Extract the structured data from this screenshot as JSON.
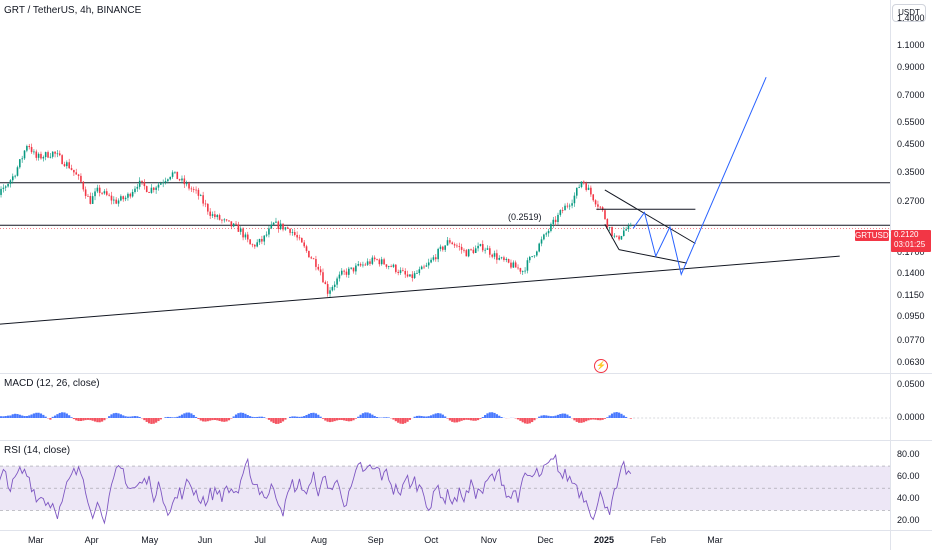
{
  "header": {
    "symbol_title": "GRT / TetherUS, 4h, BINANCE",
    "currency_button": "USDT"
  },
  "price_axis": {
    "ticks": [
      "1.4000",
      "1.1000",
      "0.9000",
      "0.7000",
      "0.5500",
      "0.4500",
      "0.3500",
      "0.2700",
      "0.2120",
      "0.1700",
      "0.1400",
      "0.1150",
      "0.0950",
      "0.0770",
      "0.0630"
    ]
  },
  "price_marker": {
    "ticker": "GRTUSDT",
    "price": "0.2120",
    "countdown": "03:01:25",
    "color": "#f23645"
  },
  "annotation": {
    "level_label": "(0.2519)"
  },
  "macd": {
    "title": "MACD (12, 26, close)",
    "ticks": [
      "0.0500",
      "0.0000"
    ]
  },
  "rsi": {
    "title": "RSI (14, close)",
    "ticks": [
      "80.00",
      "60.00",
      "40.00",
      "20.00"
    ]
  },
  "time_axis": {
    "labels": [
      "Mar",
      "Apr",
      "May",
      "Jun",
      "Jul",
      "Aug",
      "Sep",
      "Oct",
      "Nov",
      "Dec",
      "2025",
      "Feb",
      "Mar"
    ]
  },
  "logo": {
    "icon": "tradingview-logo-icon"
  },
  "colors": {
    "up": "#089981",
    "down": "#f23645",
    "projection": "#2962ff",
    "macd_positive": "#2962ff",
    "macd_negative": "#f23645",
    "rsi_line": "#7e57c2",
    "rsi_band": "#ede7f6"
  },
  "chart_data": [
    {
      "type": "candlestick",
      "title": "GRT / TetherUS, 4h, BINANCE",
      "x_ticks": [
        "Mar",
        "Apr",
        "May",
        "Jun",
        "Jul",
        "Aug",
        "Sep",
        "Oct",
        "Nov",
        "Dec",
        "2025",
        "Feb",
        "Mar"
      ],
      "y_scale": "log",
      "ylim": [
        0.058,
        1.55
      ],
      "y_ticks": [
        1.4,
        1.1,
        0.9,
        0.7,
        0.55,
        0.45,
        0.35,
        0.27,
        0.17,
        0.14,
        0.115,
        0.095,
        0.077,
        0.063
      ],
      "last_price": 0.212,
      "path_points": [
        {
          "m": 2.05,
          "p": 0.17
        },
        {
          "m": 2.2,
          "p": 0.24
        },
        {
          "m": 2.4,
          "p": 0.3
        },
        {
          "m": 2.6,
          "p": 0.34
        },
        {
          "m": 2.75,
          "p": 0.4
        },
        {
          "m": 2.85,
          "p": 0.46
        },
        {
          "m": 3.0,
          "p": 0.4
        },
        {
          "m": 3.3,
          "p": 0.42
        },
        {
          "m": 3.6,
          "p": 0.37
        },
        {
          "m": 3.8,
          "p": 0.32
        },
        {
          "m": 3.95,
          "p": 0.27
        },
        {
          "m": 4.1,
          "p": 0.3
        },
        {
          "m": 4.4,
          "p": 0.27
        },
        {
          "m": 4.6,
          "p": 0.28
        },
        {
          "m": 4.8,
          "p": 0.32
        },
        {
          "m": 5.0,
          "p": 0.3
        },
        {
          "m": 5.2,
          "p": 0.32
        },
        {
          "m": 5.4,
          "p": 0.35
        },
        {
          "m": 5.6,
          "p": 0.32
        },
        {
          "m": 5.85,
          "p": 0.29
        },
        {
          "m": 6.1,
          "p": 0.24
        },
        {
          "m": 6.4,
          "p": 0.22
        },
        {
          "m": 6.6,
          "p": 0.21
        },
        {
          "m": 6.8,
          "p": 0.18
        },
        {
          "m": 7.0,
          "p": 0.19
        },
        {
          "m": 7.2,
          "p": 0.22
        },
        {
          "m": 7.5,
          "p": 0.21
        },
        {
          "m": 7.8,
          "p": 0.17
        },
        {
          "m": 8.0,
          "p": 0.15
        },
        {
          "m": 8.15,
          "p": 0.12
        },
        {
          "m": 8.4,
          "p": 0.14
        },
        {
          "m": 8.7,
          "p": 0.15
        },
        {
          "m": 9.0,
          "p": 0.16
        },
        {
          "m": 9.3,
          "p": 0.15
        },
        {
          "m": 9.6,
          "p": 0.135
        },
        {
          "m": 9.9,
          "p": 0.15
        },
        {
          "m": 10.1,
          "p": 0.17
        },
        {
          "m": 10.3,
          "p": 0.19
        },
        {
          "m": 10.6,
          "p": 0.17
        },
        {
          "m": 10.9,
          "p": 0.18
        },
        {
          "m": 11.2,
          "p": 0.16
        },
        {
          "m": 11.45,
          "p": 0.15
        },
        {
          "m": 11.6,
          "p": 0.145
        },
        {
          "m": 11.8,
          "p": 0.17
        },
        {
          "m": 12.0,
          "p": 0.2
        },
        {
          "m": 12.3,
          "p": 0.25
        },
        {
          "m": 12.5,
          "p": 0.28
        },
        {
          "m": 12.65,
          "p": 0.33
        },
        {
          "m": 12.8,
          "p": 0.29
        },
        {
          "m": 13.0,
          "p": 0.25
        },
        {
          "m": 13.1,
          "p": 0.22
        },
        {
          "m": 13.25,
          "p": 0.19
        },
        {
          "m": 13.4,
          "p": 0.21
        },
        {
          "m": 13.55,
          "p": 0.212
        }
      ],
      "projection_path": [
        {
          "m": 13.55,
          "p": 0.212
        },
        {
          "m": 13.75,
          "p": 0.245
        },
        {
          "m": 13.95,
          "p": 0.165
        },
        {
          "m": 14.2,
          "p": 0.215
        },
        {
          "m": 14.4,
          "p": 0.14
        },
        {
          "m": 15.9,
          "p": 0.83
        }
      ],
      "horizontal_levels": [
        0.32,
        0.218
      ],
      "dotted_level": 0.212,
      "level_label": "(0.2519)",
      "level_label_price": 0.2519,
      "trendline": [
        {
          "m": 2.0,
          "p": 0.088
        },
        {
          "m": 17.2,
          "p": 0.165
        }
      ]
    },
    {
      "type": "bar",
      "title": "MACD (12, 26, close)",
      "y_ticks": [
        0.05,
        0.0
      ],
      "ylim": [
        -0.03,
        0.06
      ]
    },
    {
      "type": "line",
      "title": "RSI (14, close)",
      "y_ticks": [
        80,
        60,
        40,
        20
      ],
      "ylim": [
        14,
        90
      ],
      "band": [
        30,
        70
      ]
    }
  ]
}
